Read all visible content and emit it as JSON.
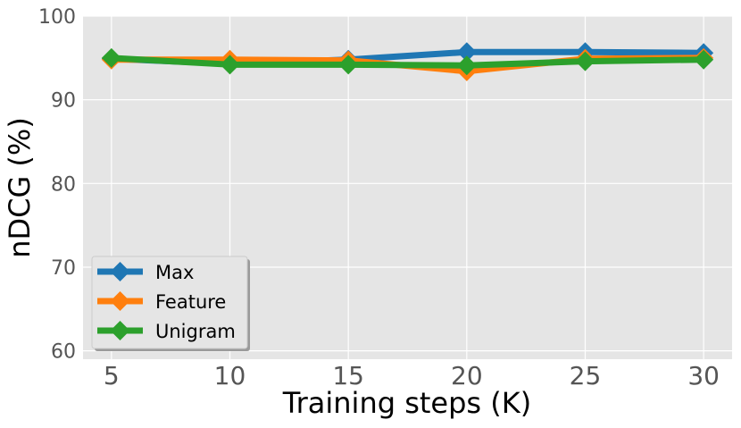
{
  "chart_data": {
    "type": "line",
    "title": "",
    "xlabel": "Training steps (K)",
    "ylabel": "nDCG (%)",
    "x": [
      5,
      10,
      15,
      20,
      25,
      30
    ],
    "xticks": [
      "5",
      "10",
      "15",
      "20",
      "25",
      "30"
    ],
    "yticks": [
      "60",
      "70",
      "80",
      "90",
      "100"
    ],
    "xlim": [
      3.8,
      31.2
    ],
    "ylim": [
      59,
      100
    ],
    "grid": true,
    "legend_position": "lower-left",
    "marker": "diamond",
    "series": [
      {
        "name": "Max",
        "color": "#1f77b4",
        "values": [
          94.9,
          94.3,
          94.8,
          95.7,
          95.7,
          95.6
        ]
      },
      {
        "name": "Feature",
        "color": "#ff7f0e",
        "values": [
          94.8,
          94.8,
          94.7,
          93.4,
          94.9,
          95.0
        ]
      },
      {
        "name": "Unigram",
        "color": "#2ca02c",
        "values": [
          95.0,
          94.2,
          94.2,
          94.1,
          94.6,
          94.8
        ]
      }
    ]
  }
}
